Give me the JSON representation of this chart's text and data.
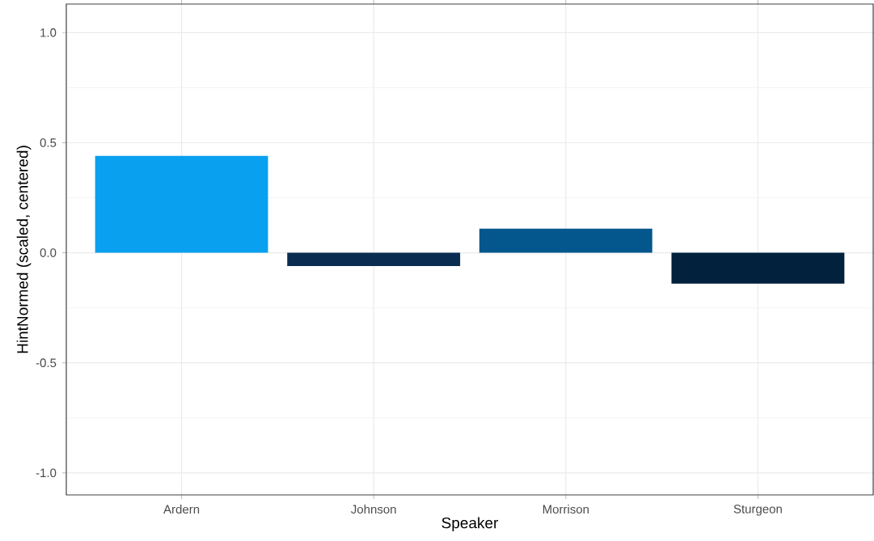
{
  "chart_data": {
    "type": "bar",
    "xlabel": "Speaker",
    "ylabel": "HintNormed (scaled, centered)",
    "categories": [
      "Ardern",
      "Johnson",
      "Morrison",
      "Sturgeon"
    ],
    "values": [
      0.44,
      -0.06,
      0.11,
      -0.14
    ],
    "colors": [
      "#0aa0f0",
      "#0a2c50",
      "#03578c",
      "#01213d"
    ],
    "ylim": [
      -1.1,
      1.13
    ],
    "yticks": [
      {
        "value": -1,
        "label": "-1.0"
      },
      {
        "value": -0.5,
        "label": "-0.5"
      },
      {
        "value": 0,
        "label": "0.0"
      },
      {
        "value": 0.5,
        "label": "0.5"
      },
      {
        "value": 1,
        "label": "1.0"
      }
    ],
    "grid": true
  }
}
